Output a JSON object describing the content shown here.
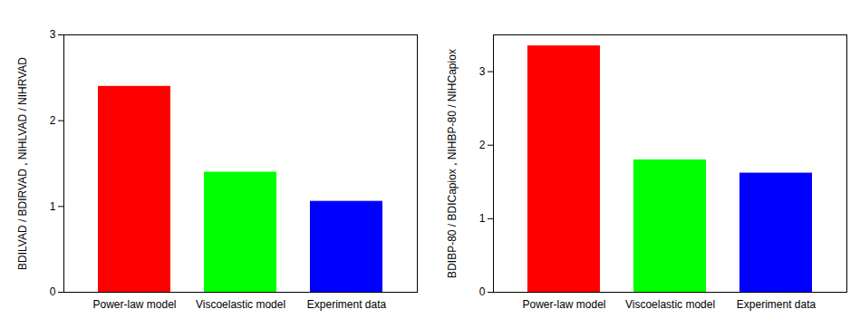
{
  "chart_data": [
    {
      "type": "bar",
      "ylabel": "BDILVAD / BDIRVAD , NIHLVAD / NIHRVAD",
      "categories": [
        "Power-law model",
        "Viscoelastic model",
        "Experiment data"
      ],
      "values": [
        2.4,
        1.4,
        1.06
      ],
      "colors": [
        "#ff0000",
        "#00ff00",
        "#0000ff"
      ],
      "ylim": [
        0,
        3
      ],
      "yticks": [
        0,
        1,
        2,
        3
      ]
    },
    {
      "type": "bar",
      "ylabel": "BDIBP-80 / BDICapiox , NIHBP-80 / NIHCapiox",
      "categories": [
        "Power-law model",
        "Viscoelastic model",
        "Experiment data"
      ],
      "values": [
        3.35,
        1.8,
        1.62
      ],
      "colors": [
        "#ff0000",
        "#00ff00",
        "#0000ff"
      ],
      "ylim": [
        0,
        3.5
      ],
      "yticks": [
        0,
        1,
        2,
        3
      ]
    }
  ]
}
